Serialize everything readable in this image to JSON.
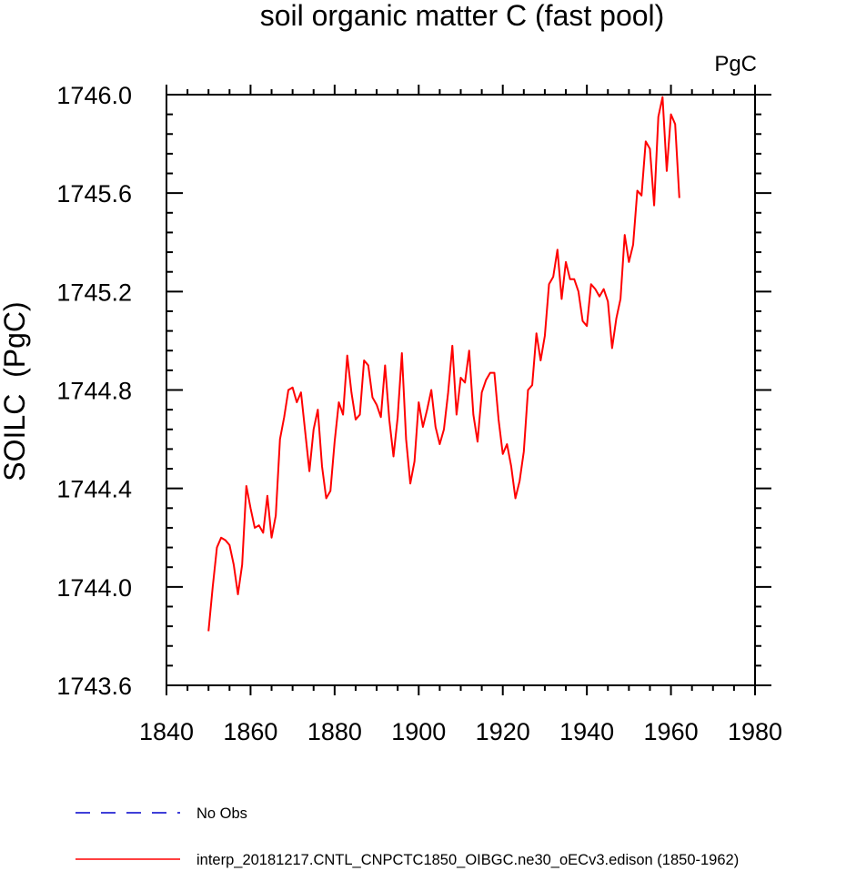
{
  "chart_data": {
    "type": "line",
    "title": "soil organic matter C (fast pool)",
    "units": "PgC",
    "xlabel": "",
    "ylabel": "SOILC  (PgC)",
    "xlim": [
      1840,
      1980
    ],
    "ylim": [
      1743.6,
      1746.0
    ],
    "xticks": [
      1840,
      1860,
      1880,
      1900,
      1920,
      1940,
      1960,
      1980
    ],
    "xtick_labels": [
      "1840",
      "1860",
      "1880",
      "1900",
      "1920",
      "1940",
      "1960",
      "1980"
    ],
    "yticks": [
      1743.6,
      1744.0,
      1744.4,
      1744.8,
      1745.2,
      1745.6,
      1746.0
    ],
    "ytick_labels": [
      "1743.6",
      "1744.0",
      "1744.4",
      "1744.8",
      "1745.2",
      "1745.6",
      "1746.0"
    ],
    "grid": false,
    "legend_position": "bottom",
    "series": [
      {
        "name": "interp_20181217.CNTL_CNPCTC1850_OIBGC.ne30_oECv3.edison (1850-1962)",
        "color": "#ff0000",
        "style": "solid",
        "x": [
          1850,
          1851,
          1852,
          1853,
          1854,
          1855,
          1856,
          1857,
          1858,
          1859,
          1860,
          1861,
          1862,
          1863,
          1864,
          1865,
          1866,
          1867,
          1868,
          1869,
          1870,
          1871,
          1872,
          1873,
          1874,
          1875,
          1876,
          1877,
          1878,
          1879,
          1880,
          1881,
          1882,
          1883,
          1884,
          1885,
          1886,
          1887,
          1888,
          1889,
          1890,
          1891,
          1892,
          1893,
          1894,
          1895,
          1896,
          1897,
          1898,
          1899,
          1900,
          1901,
          1902,
          1903,
          1904,
          1905,
          1906,
          1907,
          1908,
          1909,
          1910,
          1911,
          1912,
          1913,
          1914,
          1915,
          1916,
          1917,
          1918,
          1919,
          1920,
          1921,
          1922,
          1923,
          1924,
          1925,
          1926,
          1927,
          1928,
          1929,
          1930,
          1931,
          1932,
          1933,
          1934,
          1935,
          1936,
          1937,
          1938,
          1939,
          1940,
          1941,
          1942,
          1943,
          1944,
          1945,
          1946,
          1947,
          1948,
          1949,
          1950,
          1951,
          1952,
          1953,
          1954,
          1955,
          1956,
          1957,
          1958,
          1959,
          1960,
          1961,
          1962
        ],
        "values": [
          1743.82,
          1744.0,
          1744.16,
          1744.2,
          1744.19,
          1744.17,
          1744.09,
          1743.97,
          1744.09,
          1744.41,
          1744.32,
          1744.24,
          1744.25,
          1744.22,
          1744.37,
          1744.2,
          1744.29,
          1744.6,
          1744.69,
          1744.8,
          1744.81,
          1744.75,
          1744.79,
          1744.63,
          1744.47,
          1744.64,
          1744.72,
          1744.49,
          1744.36,
          1744.39,
          1744.59,
          1744.75,
          1744.7,
          1744.94,
          1744.79,
          1744.68,
          1744.7,
          1744.92,
          1744.9,
          1744.77,
          1744.74,
          1744.69,
          1744.9,
          1744.68,
          1744.53,
          1744.69,
          1744.95,
          1744.6,
          1744.42,
          1744.51,
          1744.75,
          1744.65,
          1744.72,
          1744.8,
          1744.65,
          1744.58,
          1744.64,
          1744.79,
          1744.98,
          1744.7,
          1744.85,
          1744.83,
          1744.96,
          1744.7,
          1744.59,
          1744.79,
          1744.84,
          1744.87,
          1744.87,
          1744.68,
          1744.54,
          1744.58,
          1744.49,
          1744.36,
          1744.43,
          1744.55,
          1744.8,
          1744.82,
          1745.03,
          1744.92,
          1745.02,
          1745.23,
          1745.26,
          1745.37,
          1745.17,
          1745.32,
          1745.25,
          1745.25,
          1745.2,
          1745.08,
          1745.06,
          1745.23,
          1745.21,
          1745.18,
          1745.21,
          1745.16,
          1744.97,
          1745.09,
          1745.17,
          1745.43,
          1745.32,
          1745.39,
          1745.61,
          1745.59,
          1745.81,
          1745.78,
          1745.55,
          1745.91,
          1745.99,
          1745.69,
          1745.92,
          1745.88,
          1745.58
        ]
      }
    ],
    "legend": [
      {
        "label": "No Obs",
        "color": "#0000cc",
        "style": "dashed"
      },
      {
        "label": "interp_20181217.CNTL_CNPCTC1850_OIBGC.ne30_oECv3.edison (1850-1962)",
        "color": "#ff0000",
        "style": "solid"
      }
    ]
  }
}
